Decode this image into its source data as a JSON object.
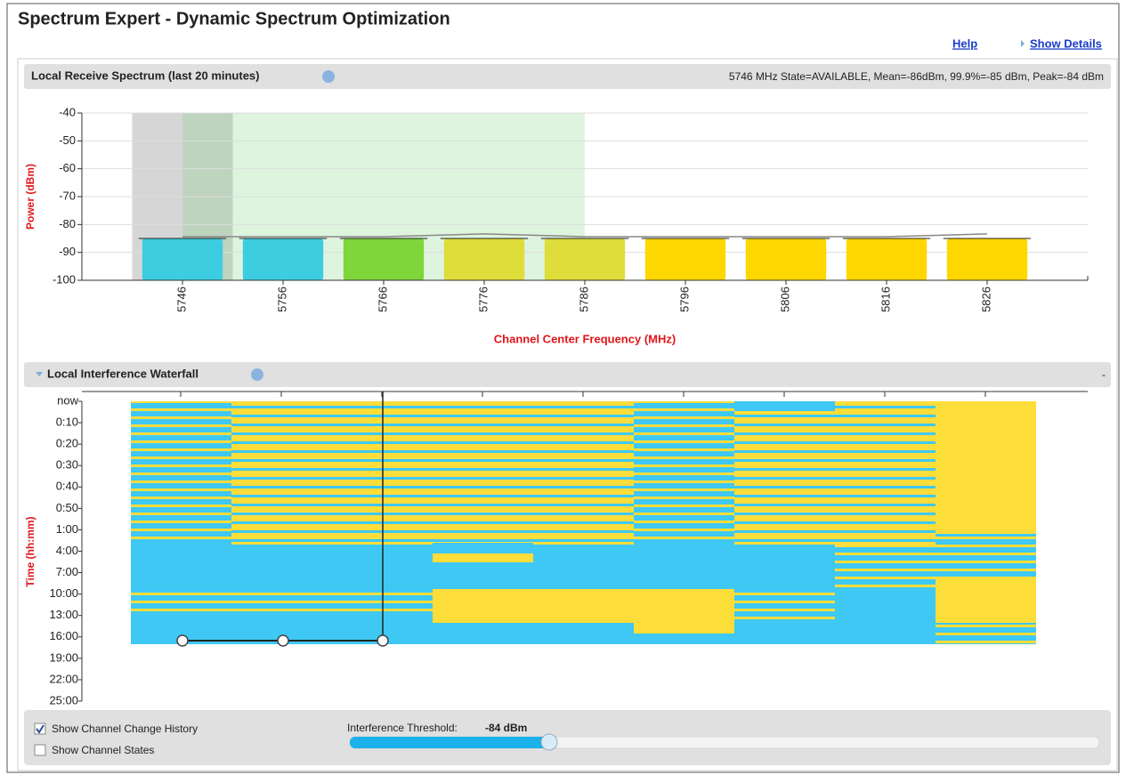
{
  "header": {
    "title": "Spectrum Expert - Dynamic Spectrum Optimization",
    "links": [
      "Help",
      "Show Details"
    ]
  },
  "spectrum": {
    "title": "Local Receive Spectrum (last 20 minutes)",
    "status": "5746 MHz State=AVAILABLE, Mean=-86dBm, 99.9%=-85 dBm, Peak=-84 dBm"
  },
  "chart_data": {
    "type": "bar",
    "x": [
      5746,
      5756,
      5766,
      5776,
      5786,
      5796,
      5806,
      5816,
      5826
    ],
    "values": [
      -85,
      -85,
      -85,
      -85,
      -85,
      -85,
      -85,
      -85,
      -85
    ],
    "line_values": [
      -85,
      -85,
      -85,
      -84,
      -85,
      -85,
      -85,
      -85,
      -84
    ],
    "colors": [
      "#3ccde0",
      "#3ccde0",
      "#7ed63a",
      "#dedd3a",
      "#dedd3a",
      "#ffd700",
      "#ffd700",
      "#ffd700",
      "#ffd700"
    ],
    "regions": [
      {
        "from": 5741,
        "to": 5751,
        "color": "rgba(120,120,120,0.3)"
      },
      {
        "from": 5746,
        "to": 5786,
        "color": "rgba(110,205,110,0.22)"
      }
    ],
    "xlim": [
      5736,
      5836
    ],
    "xticks": [
      5746,
      5756,
      5766,
      5776,
      5786,
      5796,
      5806,
      5816,
      5826
    ],
    "ylim": [
      -100,
      -40
    ],
    "yticks": [
      -100,
      -90,
      -80,
      -70,
      -60,
      -50,
      -40
    ],
    "xlabel": "Channel Center Frequency (MHz)",
    "ylabel": "Power (dBm)",
    "grid": true
  },
  "waterfall": {
    "title": "Local Interference Waterfall",
    "right": "-",
    "ylabel": "Time (hh:mm)",
    "times": [
      "now",
      "0:10",
      "0:20",
      "0:30",
      "0:40",
      "0:50",
      "1:00",
      "4:00",
      "7:00",
      "10:00",
      "13:00",
      "16:00",
      "19:00",
      "22:00",
      "25:00"
    ]
  },
  "controls": {
    "checkboxes": [
      {
        "label": "Show Channel Change History",
        "checked": true
      },
      {
        "label": "Show Channel States",
        "checked": false
      }
    ],
    "threshold_label": "Interference Threshold:",
    "threshold": "-84 dBm"
  }
}
